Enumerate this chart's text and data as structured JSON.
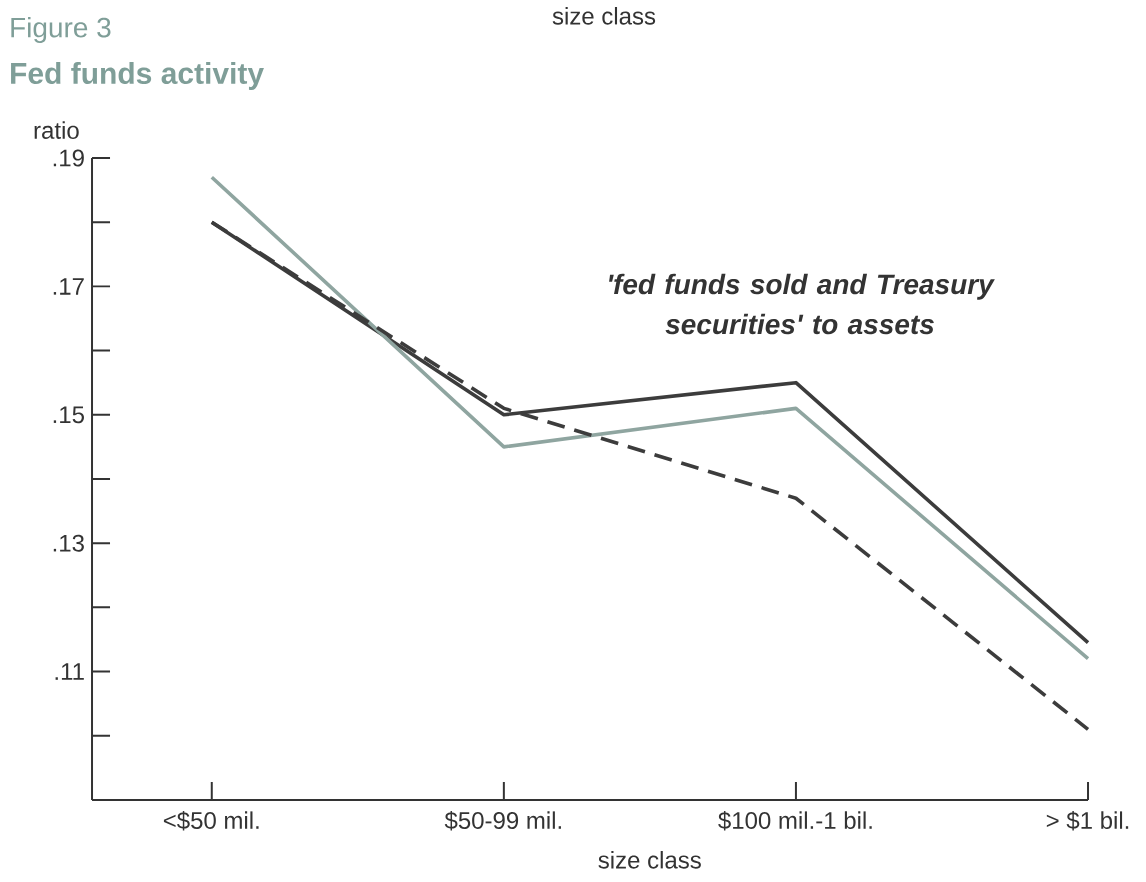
{
  "chart_data": {
    "type": "line",
    "title": "Fed funds activity",
    "subtitle": "Figure 3",
    "ylabel": "ratio",
    "xlabel": "size class",
    "annotations": [
      "size class",
      "'fed funds sold and Treasury securities' to assets"
    ],
    "categories": [
      "<$50 mil.",
      "$50-99 mil.",
      "$100 mil.-1 bil.",
      "> $1 bil."
    ],
    "series": [
      {
        "color": "#3c3c3c",
        "values": [
          0.18,
          0.15,
          0.155,
          0.1145
        ],
        "line_style": "solid"
      },
      {
        "color": "#8fa5a0",
        "values": [
          0.187,
          0.145,
          0.151,
          0.112
        ],
        "line_style": "solid"
      },
      {
        "color": "#3c3c3c",
        "values": [
          0.18,
          0.151,
          0.137,
          0.101
        ],
        "line_style": "dashed"
      }
    ],
    "ylim": [
      0.09,
      0.19
    ],
    "yticks": [
      {
        "value": 0.19,
        "label": ".19"
      },
      {
        "value": 0.18,
        "label": null
      },
      {
        "value": 0.17,
        "label": ".17"
      },
      {
        "value": 0.16,
        "label": null
      },
      {
        "value": 0.15,
        "label": ".15"
      },
      {
        "value": 0.14,
        "label": null
      },
      {
        "value": 0.13,
        "label": ".13"
      },
      {
        "value": 0.12,
        "label": null
      },
      {
        "value": 0.11,
        "label": ".11"
      },
      {
        "value": 0.1,
        "label": null
      }
    ],
    "grid": false,
    "legend": false,
    "marker": "none"
  }
}
